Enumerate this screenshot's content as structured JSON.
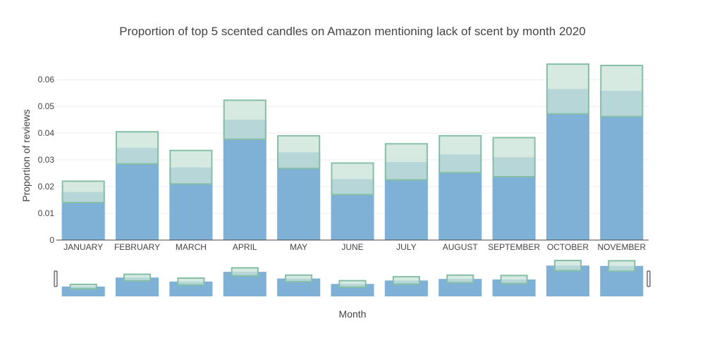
{
  "chart_data": {
    "type": "bar",
    "title": "Proportion of top 5 scented candles on Amazon mentioning lack of scent by month 2020",
    "xlabel": "Month",
    "ylabel": "Proportion of reviews",
    "ylim": [
      0,
      0.0645
    ],
    "yticks": [
      0,
      0.01,
      0.02,
      0.03,
      0.04,
      0.05,
      0.06
    ],
    "ytick_labels": [
      "0",
      "0.01",
      "0.02",
      "0.03",
      "0.04",
      "0.05",
      "0.06"
    ],
    "grid": true,
    "range_slider": true,
    "categories": [
      "JANUARY",
      "FEBRUARY",
      "MARCH",
      "APRIL",
      "MAY",
      "JUNE",
      "JULY",
      "AUGUST",
      "SEPTEMBER",
      "OCTOBER",
      "NOVEMBER"
    ],
    "series": [
      {
        "type": "bar",
        "values": [
          0.018,
          0.0345,
          0.0272,
          0.045,
          0.0328,
          0.0228,
          0.0292,
          0.032,
          0.031,
          0.0565,
          0.0558
        ],
        "color": "#7fb1d7"
      },
      {
        "type": "interval",
        "lower": [
          0.014,
          0.0285,
          0.021,
          0.0377,
          0.0268,
          0.017,
          0.0225,
          0.0252,
          0.0237,
          0.0472,
          0.0462
        ],
        "upper": [
          0.022,
          0.0405,
          0.0335,
          0.0523,
          0.039,
          0.0288,
          0.036,
          0.039,
          0.0383,
          0.0658,
          0.0653
        ],
        "fill_color": "#c8e3d8",
        "stroke_color": "#86bfa6"
      }
    ]
  }
}
